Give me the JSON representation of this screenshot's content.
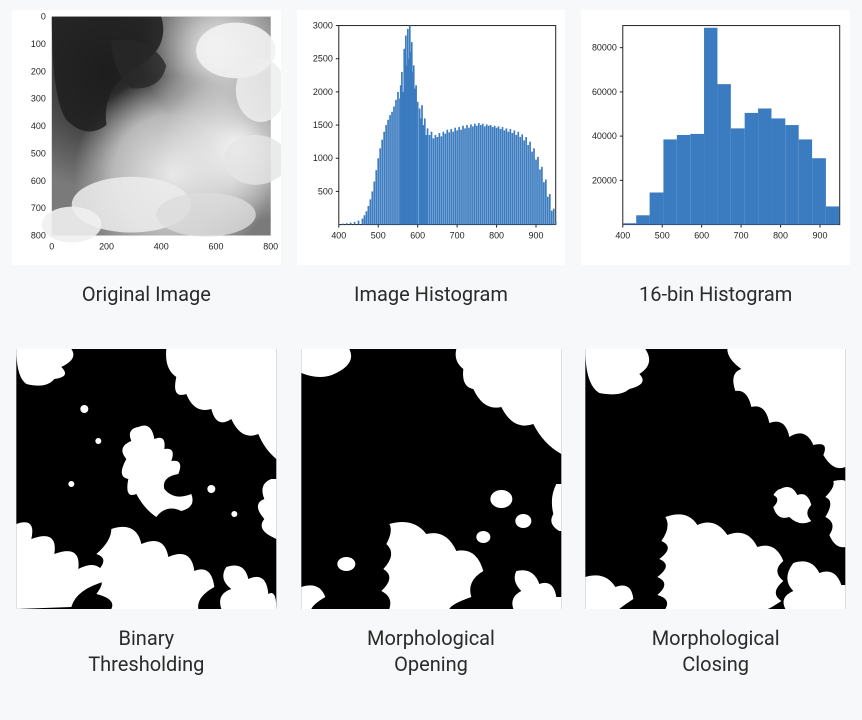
{
  "bg_color": "#f7f8f9",
  "axis_color": "#222222",
  "bar_color": "#3b7bbf",
  "tick_fontsize": 9,
  "caption_fontsize": 20,
  "caption_color": "#2b2b2b",
  "original_image": {
    "type": "image-with-axes",
    "caption": "Original Image",
    "xlim": [
      0,
      800
    ],
    "ylim": [
      0,
      800
    ],
    "xticks": [
      0,
      200,
      400,
      600,
      800
    ],
    "yticks": [
      0,
      100,
      200,
      300,
      400,
      500,
      600,
      700,
      800
    ],
    "background": "#6a6a6a"
  },
  "image_histogram": {
    "type": "histogram",
    "caption": "Image Histogram",
    "xlim": [
      400,
      950
    ],
    "ylim": [
      0,
      3000
    ],
    "xticks": [
      400,
      500,
      600,
      700,
      800,
      900
    ],
    "yticks": [
      500,
      1000,
      1500,
      2000,
      2500,
      3000
    ],
    "bar_color": "#3b7bbf",
    "values": [
      [
        400,
        10
      ],
      [
        410,
        15
      ],
      [
        420,
        20
      ],
      [
        430,
        30
      ],
      [
        440,
        40
      ],
      [
        450,
        60
      ],
      [
        460,
        90
      ],
      [
        465,
        140
      ],
      [
        470,
        200
      ],
      [
        475,
        280
      ],
      [
        480,
        380
      ],
      [
        485,
        500
      ],
      [
        490,
        650
      ],
      [
        495,
        820
      ],
      [
        500,
        1000
      ],
      [
        505,
        1150
      ],
      [
        510,
        1280
      ],
      [
        515,
        1400
      ],
      [
        520,
        1500
      ],
      [
        525,
        1580
      ],
      [
        530,
        1650
      ],
      [
        535,
        1700
      ],
      [
        540,
        1780
      ],
      [
        545,
        1880
      ],
      [
        550,
        2000
      ],
      [
        555,
        1900
      ],
      [
        557,
        2100
      ],
      [
        560,
        2300
      ],
      [
        563,
        2000
      ],
      [
        566,
        2650
      ],
      [
        568,
        2300
      ],
      [
        570,
        2850
      ],
      [
        572,
        2400
      ],
      [
        575,
        2950
      ],
      [
        578,
        2500
      ],
      [
        580,
        3000
      ],
      [
        583,
        2600
      ],
      [
        585,
        2750
      ],
      [
        588,
        2300
      ],
      [
        590,
        2400
      ],
      [
        593,
        2050
      ],
      [
        596,
        2100
      ],
      [
        600,
        1850
      ],
      [
        605,
        1750
      ],
      [
        608,
        1600
      ],
      [
        611,
        1800
      ],
      [
        614,
        1500
      ],
      [
        618,
        1600
      ],
      [
        622,
        1350
      ],
      [
        625,
        1450
      ],
      [
        630,
        1350
      ],
      [
        635,
        1400
      ],
      [
        640,
        1300
      ],
      [
        645,
        1350
      ],
      [
        650,
        1320
      ],
      [
        655,
        1380
      ],
      [
        660,
        1330
      ],
      [
        665,
        1400
      ],
      [
        670,
        1370
      ],
      [
        675,
        1430
      ],
      [
        680,
        1390
      ],
      [
        685,
        1440
      ],
      [
        690,
        1400
      ],
      [
        695,
        1460
      ],
      [
        700,
        1420
      ],
      [
        705,
        1470
      ],
      [
        710,
        1430
      ],
      [
        715,
        1490
      ],
      [
        720,
        1450
      ],
      [
        725,
        1500
      ],
      [
        730,
        1460
      ],
      [
        735,
        1510
      ],
      [
        740,
        1480
      ],
      [
        745,
        1520
      ],
      [
        750,
        1490
      ],
      [
        755,
        1530
      ],
      [
        760,
        1500
      ],
      [
        765,
        1520
      ],
      [
        770,
        1480
      ],
      [
        775,
        1510
      ],
      [
        780,
        1490
      ],
      [
        785,
        1500
      ],
      [
        790,
        1470
      ],
      [
        795,
        1490
      ],
      [
        800,
        1460
      ],
      [
        805,
        1480
      ],
      [
        810,
        1440
      ],
      [
        815,
        1470
      ],
      [
        820,
        1420
      ],
      [
        825,
        1450
      ],
      [
        830,
        1400
      ],
      [
        835,
        1440
      ],
      [
        840,
        1380
      ],
      [
        845,
        1420
      ],
      [
        850,
        1350
      ],
      [
        855,
        1400
      ],
      [
        860,
        1320
      ],
      [
        865,
        1360
      ],
      [
        870,
        1270
      ],
      [
        875,
        1320
      ],
      [
        880,
        1200
      ],
      [
        885,
        1250
      ],
      [
        890,
        1100
      ],
      [
        895,
        1150
      ],
      [
        900,
        980
      ],
      [
        905,
        1020
      ],
      [
        910,
        830
      ],
      [
        915,
        870
      ],
      [
        920,
        640
      ],
      [
        925,
        680
      ],
      [
        930,
        420
      ],
      [
        935,
        460
      ],
      [
        940,
        210
      ],
      [
        945,
        240
      ],
      [
        950,
        40
      ]
    ]
  },
  "histogram_16bin": {
    "type": "bar",
    "caption": "16-bin Histogram",
    "xlim": [
      400,
      950
    ],
    "ylim": [
      0,
      90000
    ],
    "xticks": [
      400,
      500,
      600,
      700,
      800,
      900
    ],
    "yticks": [
      20000,
      40000,
      60000,
      80000
    ],
    "bar_color": "#3b7bbf",
    "bin_edges": [
      400,
      434,
      468,
      503,
      537,
      571,
      606,
      640,
      674,
      709,
      743,
      777,
      812,
      846,
      880,
      915,
      949
    ],
    "bin_heights": [
      600,
      4200,
      14500,
      38500,
      40500,
      41000,
      89000,
      63500,
      43500,
      50500,
      52500,
      48000,
      45000,
      38500,
      30000,
      8200
    ]
  },
  "binary_threshold": {
    "type": "binary-image",
    "caption": "Binary\nThresholding",
    "fg_color": "#ffffff",
    "bg_color": "#000000"
  },
  "morph_opening": {
    "type": "binary-image",
    "caption": "Morphological\nOpening",
    "fg_color": "#ffffff",
    "bg_color": "#000000"
  },
  "morph_closing": {
    "type": "binary-image",
    "caption": "Morphological\nClosing",
    "fg_color": "#ffffff",
    "bg_color": "#000000"
  }
}
